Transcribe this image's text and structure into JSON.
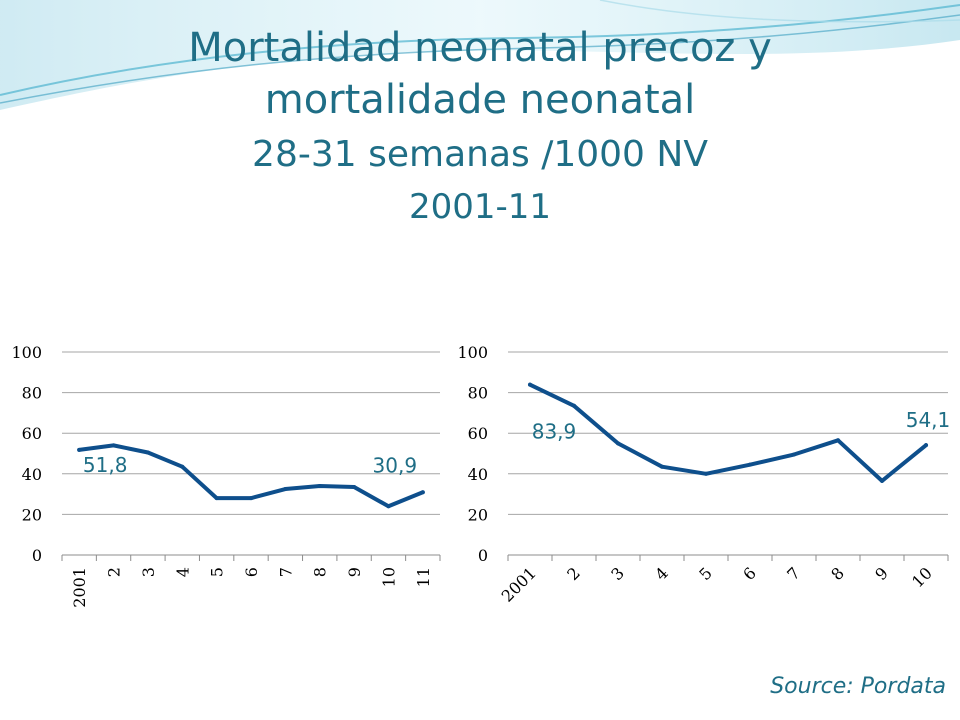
{
  "title": {
    "line1": "Mortalidad neonatal precoz y",
    "line2": "mortalidade neonatal",
    "line3": "28-31 semanas /1000 NV",
    "line4": "2001-11"
  },
  "source": "Source:  Pordata",
  "colors": {
    "line": "#0e4f8c",
    "label": "#1f6e86",
    "grid": "#a6a6a6",
    "axis": "#8c8c8c"
  },
  "chart_data": [
    {
      "type": "line",
      "title": "",
      "xlabel": "",
      "ylabel": "",
      "ylim": [
        0,
        100
      ],
      "yticks": [
        0,
        20,
        40,
        60,
        80,
        100
      ],
      "categories": [
        "2001",
        "2",
        "3",
        "4",
        "5",
        "6",
        "7",
        "8",
        "9",
        "10",
        "11"
      ],
      "series": [
        {
          "name": "left",
          "values": [
            51.8,
            54,
            50.5,
            43.5,
            28,
            28,
            32.5,
            34,
            33.5,
            24,
            30.9
          ]
        }
      ],
      "annotations": [
        {
          "text": "51,8",
          "index": 0
        },
        {
          "text": "30,9",
          "index": 10
        }
      ],
      "grid": true
    },
    {
      "type": "line",
      "title": "",
      "xlabel": "",
      "ylabel": "",
      "ylim": [
        0,
        100
      ],
      "yticks": [
        0,
        20,
        40,
        60,
        80,
        100
      ],
      "categories": [
        "2001",
        "2",
        "3",
        "4",
        "5",
        "6",
        "7",
        "8",
        "9",
        "10"
      ],
      "series": [
        {
          "name": "right",
          "values": [
            83.9,
            73.5,
            55,
            43.5,
            40,
            44.5,
            49.5,
            56.5,
            36.5,
            54.1
          ]
        }
      ],
      "annotations": [
        {
          "text": "83,9",
          "index": 0
        },
        {
          "text": "54,1",
          "index": 9
        }
      ],
      "grid": true
    }
  ]
}
